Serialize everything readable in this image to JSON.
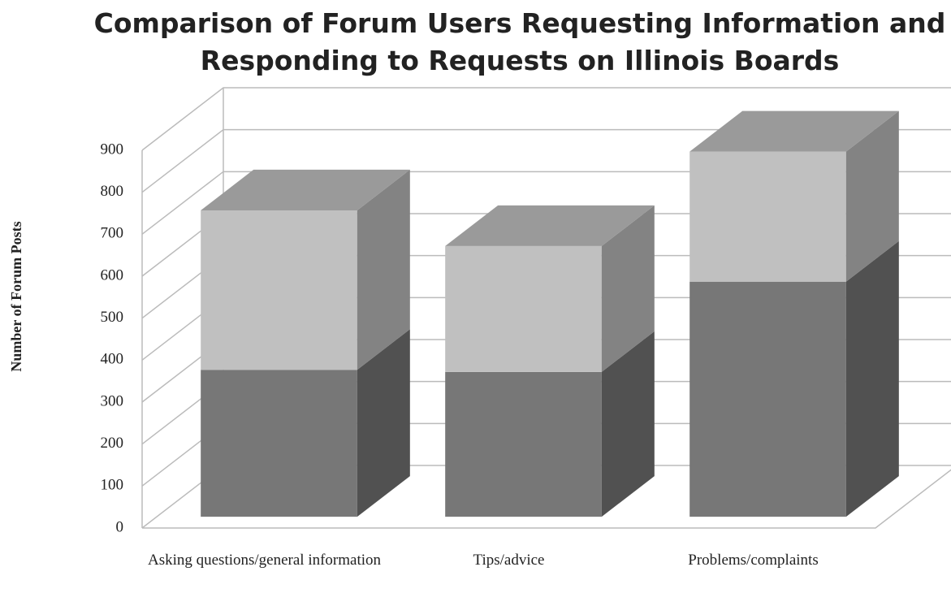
{
  "chart_data": {
    "type": "bar3d_stacked",
    "title": "Comparison of Forum Users Requesting Information and Responding to Requests on Illinois Boards",
    "y_label": "Number of Forum Posts",
    "categories": [
      "Asking questions/general information",
      "Tips/advice",
      "Problems/complaints"
    ],
    "series": [
      {
        "color": "#777777",
        "values": [
          350,
          345,
          560
        ]
      },
      {
        "color": "#c0c0c0",
        "values": [
          380,
          300,
          310
        ]
      }
    ],
    "ylim": [
      0,
      900
    ],
    "yticks": [
      0,
      100,
      200,
      300,
      400,
      500,
      600,
      700,
      800,
      900
    ],
    "grid": true
  }
}
